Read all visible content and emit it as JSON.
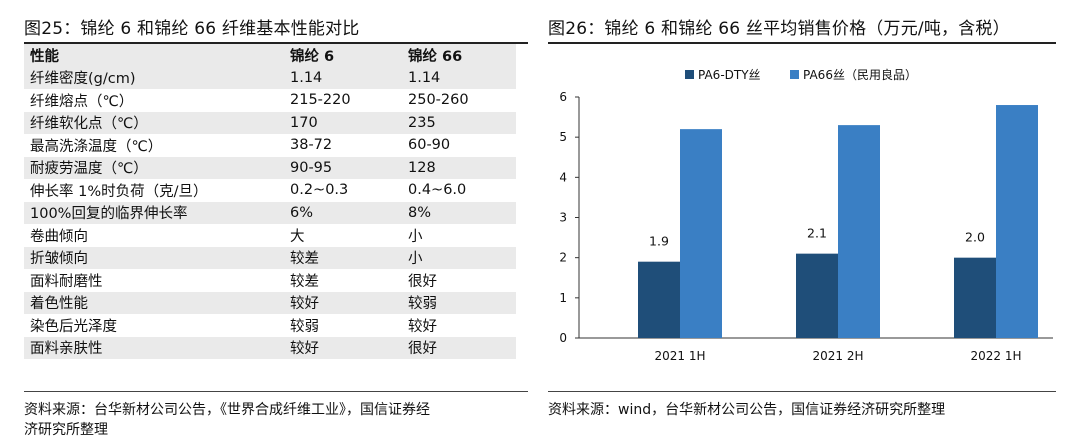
{
  "left": {
    "title": "图25：锦纶 6 和锦纶 66 纤维基本性能对比",
    "table": {
      "headers": [
        "性能",
        "锦纶 6",
        "锦纶 66"
      ],
      "rows": [
        [
          "纤维密度(g/cm)",
          "1.14",
          "1.14"
        ],
        [
          "纤维熔点（℃）",
          "215-220",
          "250-260"
        ],
        [
          "纤维软化点（℃）",
          "170",
          "235"
        ],
        [
          "最高洗涤温度（℃）",
          "38-72",
          "60-90"
        ],
        [
          "耐疲劳温度（℃）",
          "90-95",
          "128"
        ],
        [
          "伸长率 1%时负荷（克/旦）",
          "0.2~0.3",
          "0.4~6.0"
        ],
        [
          "100%回复的临界伸长率",
          "6%",
          "8%"
        ],
        [
          "卷曲倾向",
          "大",
          "小"
        ],
        [
          "折皱倾向",
          "较差",
          "小"
        ],
        [
          "面料耐磨性",
          "较差",
          "很好"
        ],
        [
          "着色性能",
          "较好",
          "较弱"
        ],
        [
          "染色后光泽度",
          "较弱",
          "较好"
        ],
        [
          "面料亲肤性",
          "较好",
          "很好"
        ]
      ]
    },
    "source_line1": "资料来源：台华新材公司公告，《世界合成纤维工业》，国信证券经",
    "source_line2": "济研究所整理"
  },
  "right": {
    "title": "图26：锦纶 6 和锦纶 66 丝平均销售价格（万元/吨，含税）",
    "source": "资料来源：wind，台华新材公司公告，国信证券经济研究所整理"
  },
  "chart_data": {
    "type": "bar",
    "title": "图26：锦纶 6 和锦纶 66 丝平均销售价格（万元/吨，含税）",
    "categories": [
      "2021 1H",
      "2021 2H",
      "2022 1H"
    ],
    "series": [
      {
        "name": "PA6-DTY丝",
        "values": [
          1.9,
          2.1,
          2.0
        ],
        "data_labels": [
          "1.9",
          "2.1",
          "2.0"
        ],
        "color": "#1f4e79"
      },
      {
        "name": "PA66丝（民用良品）",
        "values": [
          5.2,
          5.3,
          5.8
        ],
        "color": "#3a7fc4"
      }
    ],
    "ylim": [
      0,
      6
    ],
    "yticks": [
      0,
      1,
      2,
      3,
      4,
      5,
      6
    ],
    "grid": false,
    "legend": "top-center"
  }
}
